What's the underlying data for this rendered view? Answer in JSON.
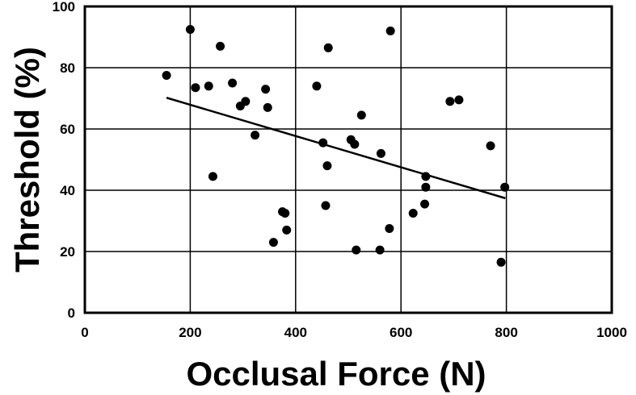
{
  "chart_data": {
    "type": "scatter",
    "title": "",
    "xlabel": "Occlusal Force (N)",
    "ylabel": "Threshold (%)",
    "xlim": [
      0,
      1000
    ],
    "ylim": [
      0,
      100
    ],
    "xticks": [
      "0",
      "200",
      "400",
      "600",
      "800",
      "1000"
    ],
    "yticks": [
      "0",
      "20",
      "40",
      "60",
      "80",
      "100"
    ],
    "grid": true,
    "legend": "none",
    "points": [
      {
        "x": 155,
        "y": 77.5
      },
      {
        "x": 200,
        "y": 92.5
      },
      {
        "x": 210,
        "y": 73.5
      },
      {
        "x": 235,
        "y": 74
      },
      {
        "x": 243,
        "y": 44.5
      },
      {
        "x": 257,
        "y": 87
      },
      {
        "x": 280,
        "y": 75
      },
      {
        "x": 295,
        "y": 67.5
      },
      {
        "x": 305,
        "y": 69
      },
      {
        "x": 323,
        "y": 58
      },
      {
        "x": 343,
        "y": 73
      },
      {
        "x": 347,
        "y": 67
      },
      {
        "x": 358,
        "y": 23
      },
      {
        "x": 375,
        "y": 33
      },
      {
        "x": 380,
        "y": 32.5
      },
      {
        "x": 383,
        "y": 27
      },
      {
        "x": 440,
        "y": 74
      },
      {
        "x": 452,
        "y": 55.5
      },
      {
        "x": 457,
        "y": 35
      },
      {
        "x": 460,
        "y": 48
      },
      {
        "x": 462,
        "y": 86.5
      },
      {
        "x": 505,
        "y": 56.5
      },
      {
        "x": 512,
        "y": 55
      },
      {
        "x": 515,
        "y": 20.5
      },
      {
        "x": 525,
        "y": 64.5
      },
      {
        "x": 560,
        "y": 20.5
      },
      {
        "x": 562,
        "y": 52
      },
      {
        "x": 578,
        "y": 27.5
      },
      {
        "x": 580,
        "y": 92
      },
      {
        "x": 623,
        "y": 32.5
      },
      {
        "x": 645,
        "y": 35.5
      },
      {
        "x": 647,
        "y": 44.5
      },
      {
        "x": 647,
        "y": 41
      },
      {
        "x": 693,
        "y": 69
      },
      {
        "x": 710,
        "y": 69.5
      },
      {
        "x": 770,
        "y": 54.5
      },
      {
        "x": 790,
        "y": 16.5
      },
      {
        "x": 797,
        "y": 41
      }
    ],
    "trendline": {
      "x": [
        155,
        798
      ],
      "y": [
        70.2,
        37.4
      ]
    },
    "colors": {
      "points": "#000000",
      "line": "#000000",
      "grid": "#000000"
    }
  }
}
